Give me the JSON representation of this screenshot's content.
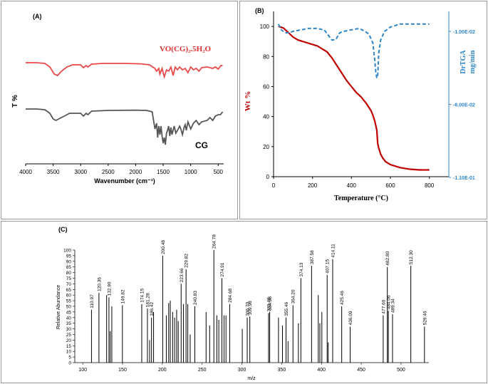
{
  "chart_data": [
    {
      "panel_label": "(A)",
      "type": "line",
      "xlabel": "Wavenumber (cm⁻¹)",
      "ylabel": "T %",
      "xlim": [
        4000,
        400
      ],
      "xticks": [
        4000,
        3500,
        3000,
        2500,
        2000,
        1500,
        1000,
        500
      ],
      "grid": false,
      "series": [
        {
          "name": "VO(CG)₂.5H₂O",
          "color": "#e84a4a",
          "x": [
            4000,
            3800,
            3650,
            3560,
            3480,
            3420,
            3350,
            3250,
            3150,
            3000,
            2950,
            2900,
            2870,
            2800,
            2600,
            2200,
            1900,
            1750,
            1650,
            1620,
            1580,
            1560,
            1520,
            1480,
            1440,
            1400,
            1360,
            1320,
            1280,
            1240,
            1200,
            1150,
            1100,
            1050,
            1000,
            950,
            900,
            850,
            800,
            700,
            600,
            550,
            500,
            450,
            420
          ],
          "y": [
            0.0,
            0.0,
            0.5,
            3.0,
            8.0,
            9.0,
            6.0,
            3.0,
            1.5,
            1.5,
            3.5,
            2.0,
            3.0,
            1.0,
            0.5,
            0.5,
            0.8,
            1.5,
            4.0,
            6.0,
            4.0,
            8.0,
            4.0,
            10.0,
            5.0,
            6.0,
            3.0,
            9.0,
            3.0,
            5.0,
            3.0,
            5.0,
            4.0,
            7.0,
            3.0,
            5.0,
            4.0,
            6.0,
            3.5,
            3.0,
            4.0,
            3.0,
            4.5,
            2.0,
            2.0
          ]
        },
        {
          "name": "CG",
          "color": "#555555",
          "x": [
            4000,
            3800,
            3650,
            3560,
            3500,
            3450,
            3400,
            3300,
            3200,
            3000,
            2950,
            2900,
            2870,
            2800,
            2500,
            2000,
            1800,
            1700,
            1650,
            1620,
            1600,
            1580,
            1560,
            1540,
            1520,
            1500,
            1480,
            1460,
            1440,
            1420,
            1400,
            1380,
            1360,
            1340,
            1300,
            1270,
            1240,
            1200,
            1180,
            1150,
            1120,
            1100,
            1080,
            1050,
            1000,
            950,
            900,
            850,
            800,
            700,
            650,
            600,
            550,
            500,
            460,
            420
          ],
          "y": [
            0,
            0,
            0.5,
            3,
            7,
            8,
            7,
            5,
            3,
            3,
            5,
            3,
            4,
            1.5,
            1,
            0.8,
            1,
            2,
            14,
            10,
            20,
            12,
            18,
            12,
            19,
            24,
            20,
            25,
            17,
            15,
            12,
            19,
            13,
            18,
            12,
            17,
            15,
            12,
            14,
            18,
            13,
            11,
            15,
            9,
            14,
            10,
            8,
            11,
            9,
            8,
            6,
            8,
            5,
            4,
            4,
            2
          ]
        }
      ]
    },
    {
      "panel_label": "(B)",
      "type": "line",
      "xlabel": "Temperature (°C)",
      "ylabel": "Wt %",
      "y2label": "DrTGA mg/min",
      "xlim": [
        0,
        900
      ],
      "ylim": [
        0,
        110
      ],
      "xticks": [
        0,
        200,
        400,
        600,
        800
      ],
      "yticks": [
        0,
        20,
        40,
        60,
        80,
        100
      ],
      "y2ticks": [
        "-1.00E-02",
        "-6.00E-02",
        "-1.10E-01"
      ],
      "grid": false,
      "series": [
        {
          "name": "Wt %",
          "color": "#c00000",
          "x": [
            25,
            50,
            75,
            100,
            125,
            150,
            175,
            200,
            225,
            250,
            275,
            300,
            325,
            350,
            375,
            400,
            425,
            450,
            475,
            500,
            510,
            520,
            530,
            535,
            540,
            545,
            550,
            560,
            575,
            600,
            650,
            700,
            750,
            800
          ],
          "y": [
            100,
            99,
            96,
            93,
            91,
            90,
            89,
            88,
            87,
            85,
            83,
            79,
            74,
            69,
            64,
            60,
            56,
            53,
            49,
            44,
            41,
            37,
            31,
            22,
            19,
            17,
            15,
            12.5,
            10,
            8,
            6,
            5,
            4.5,
            4.5
          ]
        },
        {
          "name": "DrTGA",
          "color": "#2e86c8",
          "x": [
            25,
            40,
            60,
            80,
            100,
            140,
            180,
            220,
            260,
            300,
            320,
            340,
            360,
            400,
            440,
            470,
            490,
            510,
            520,
            525,
            530,
            535,
            540,
            550,
            570,
            600,
            650,
            700,
            800
          ],
          "y": [
            -0.005,
            -0.009,
            -0.011,
            -0.011,
            -0.01,
            -0.009,
            -0.008,
            -0.008,
            -0.009,
            -0.016,
            -0.0155,
            -0.011,
            -0.01,
            -0.009,
            -0.008,
            -0.01,
            -0.012,
            -0.018,
            -0.03,
            -0.038,
            -0.042,
            -0.04,
            -0.025,
            -0.016,
            -0.01,
            -0.007,
            -0.005,
            -0.005,
            -0.005
          ]
        }
      ]
    },
    {
      "panel_label": "(C)",
      "type": "bar",
      "xlabel": "m/z",
      "ylabel": "Relative Abundance",
      "xlim": [
        90,
        535
      ],
      "ylim": [
        0,
        100
      ],
      "xticks": [
        100,
        150,
        200,
        250,
        300,
        350,
        400,
        450,
        500
      ],
      "yticks": [
        0,
        5,
        10,
        15,
        20,
        25,
        30,
        35,
        40,
        45,
        50,
        55,
        60,
        65,
        70,
        75,
        80,
        85,
        90,
        95,
        100
      ],
      "peaks": [
        {
          "x": 110.97,
          "y": 47,
          "label": "110.97"
        },
        {
          "x": 120.36,
          "y": 62,
          "label": "120.36"
        },
        {
          "x": 130.0,
          "y": 60
        },
        {
          "x": 132.9,
          "y": 58,
          "label": "132.90"
        },
        {
          "x": 134.5,
          "y": 28
        },
        {
          "x": 136.5,
          "y": 50
        },
        {
          "x": 149.82,
          "y": 51,
          "label": "149.82"
        },
        {
          "x": 174.15,
          "y": 52,
          "label": "174.15"
        },
        {
          "x": 181.28,
          "y": 48,
          "label": "181.28"
        },
        {
          "x": 184.0,
          "y": 20
        },
        {
          "x": 186.42,
          "y": 40,
          "label": "186.42"
        },
        {
          "x": 189.0,
          "y": 45
        },
        {
          "x": 200.48,
          "y": 95,
          "label": "200.48"
        },
        {
          "x": 205.0,
          "y": 42
        },
        {
          "x": 208.0,
          "y": 53
        },
        {
          "x": 210.0,
          "y": 55
        },
        {
          "x": 213.0,
          "y": 45
        },
        {
          "x": 215.5,
          "y": 40
        },
        {
          "x": 218.0,
          "y": 47
        },
        {
          "x": 220.0,
          "y": 37
        },
        {
          "x": 223.66,
          "y": 70,
          "label": "223.66"
        },
        {
          "x": 226.5,
          "y": 52
        },
        {
          "x": 229.82,
          "y": 83,
          "label": "229.82"
        },
        {
          "x": 232.0,
          "y": 52
        },
        {
          "x": 235.0,
          "y": 25
        },
        {
          "x": 240.83,
          "y": 50,
          "label": "240.83"
        },
        {
          "x": 255.0,
          "y": 45
        },
        {
          "x": 259.5,
          "y": 33
        },
        {
          "x": 264.78,
          "y": 100,
          "label": "264.78"
        },
        {
          "x": 268.5,
          "y": 42
        },
        {
          "x": 271.0,
          "y": 38
        },
        {
          "x": 274.91,
          "y": 75,
          "label": "274.91"
        },
        {
          "x": 277.5,
          "y": 42
        },
        {
          "x": 280.0,
          "y": 42
        },
        {
          "x": 284.68,
          "y": 52,
          "label": "284.68"
        },
        {
          "x": 300.5,
          "y": 30
        },
        {
          "x": 306.7,
          "y": 40,
          "label": "306.70"
        },
        {
          "x": 309.98,
          "y": 41,
          "label": "309.98"
        },
        {
          "x": 333.48,
          "y": 44,
          "label": "333.48"
        },
        {
          "x": 334.98,
          "y": 45,
          "label": "334.98"
        },
        {
          "x": 346.0,
          "y": 40
        },
        {
          "x": 351.0,
          "y": 33
        },
        {
          "x": 355.46,
          "y": 40,
          "label": "355.46"
        },
        {
          "x": 358.0,
          "y": 19
        },
        {
          "x": 364.2,
          "y": 51,
          "label": "364.20"
        },
        {
          "x": 371.0,
          "y": 35
        },
        {
          "x": 374.13,
          "y": 75,
          "label": "374.13"
        },
        {
          "x": 387.58,
          "y": 86,
          "label": "387.58"
        },
        {
          "x": 396.0,
          "y": 60
        },
        {
          "x": 398.0,
          "y": 35
        },
        {
          "x": 400.5,
          "y": 45
        },
        {
          "x": 407.15,
          "y": 78,
          "label": "407.15"
        },
        {
          "x": 408.5,
          "y": 18
        },
        {
          "x": 414.11,
          "y": 92,
          "label": "414.11"
        },
        {
          "x": 425.46,
          "y": 50,
          "label": "425.46"
        },
        {
          "x": 436.09,
          "y": 32,
          "label": "436.09"
        },
        {
          "x": 477.6,
          "y": 42,
          "label": "477.60"
        },
        {
          "x": 482.8,
          "y": 85,
          "label": "482.80"
        },
        {
          "x": 484.06,
          "y": 46,
          "label": "484.06"
        },
        {
          "x": 489.34,
          "y": 43,
          "label": "489.34"
        },
        {
          "x": 512.3,
          "y": 86,
          "label": "512.30"
        },
        {
          "x": 529.46,
          "y": 32,
          "label": "529.46"
        }
      ]
    }
  ]
}
